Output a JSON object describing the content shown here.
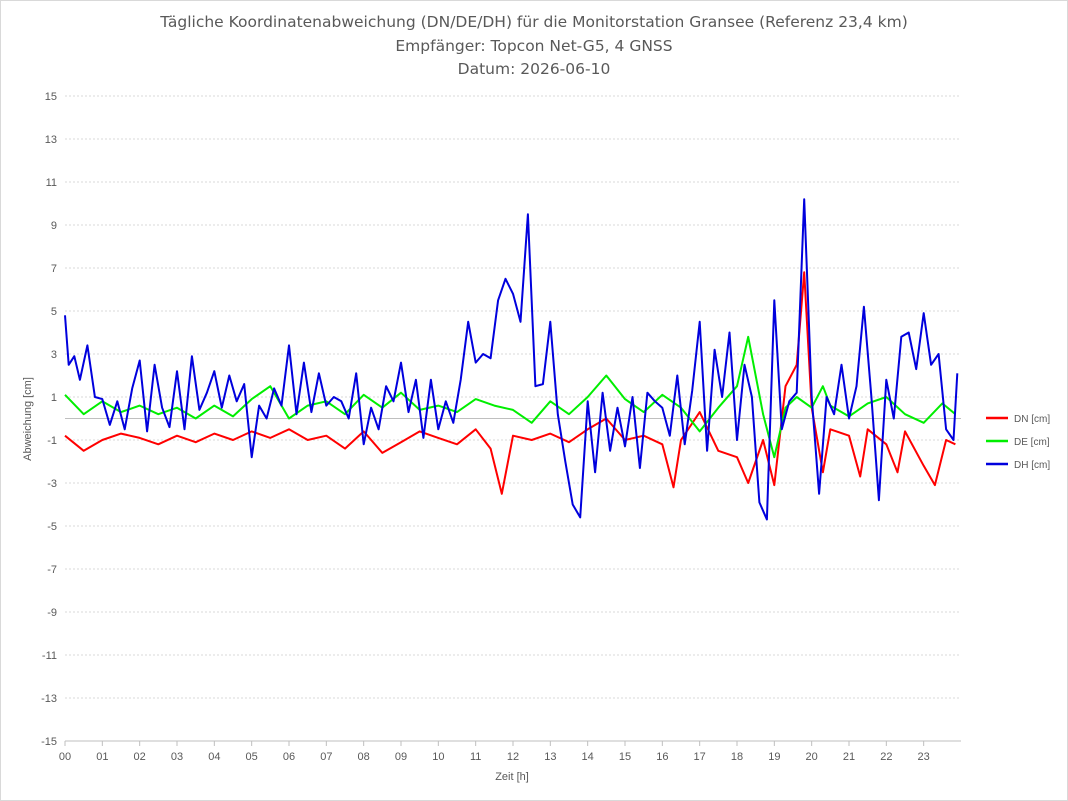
{
  "chart_data": {
    "type": "line",
    "title": "Tägliche Koordinatenabweichung (DN/DE/DH) für die Monitorstation Gransee (Referenz 23,4 km)",
    "subtitle": "Empfänger: Topcon Net-G5, 4 GNSS",
    "date_line": "Datum: 2026-06-10",
    "xlabel": "Zeit [h]",
    "ylabel": "Abweichung [cm]",
    "ylim": [
      -15,
      15
    ],
    "yticks": [
      "15",
      "13",
      "11",
      "9",
      "7",
      "5",
      "3",
      "1",
      "-1",
      "-3",
      "-5",
      "-7",
      "-9",
      "-11",
      "-13",
      "-15"
    ],
    "xlim": [
      0,
      24
    ],
    "xticks": [
      "00",
      "01",
      "02",
      "03",
      "04",
      "05",
      "06",
      "07",
      "08",
      "09",
      "10",
      "11",
      "12",
      "13",
      "14",
      "15",
      "16",
      "17",
      "18",
      "19",
      "20",
      "21",
      "22",
      "23"
    ],
    "grid": "horizontal-dotted",
    "legend_position": "right",
    "series": [
      {
        "name": "DN [cm]",
        "color": "#ff0000",
        "x": [
          0,
          0.5,
          1,
          1.5,
          2,
          2.5,
          3,
          3.5,
          4,
          4.5,
          5,
          5.5,
          6,
          6.5,
          7,
          7.5,
          8,
          8.5,
          9,
          9.5,
          10,
          10.5,
          11,
          11.4,
          11.7,
          12,
          12.5,
          13,
          13.5,
          14,
          14.5,
          15,
          15.5,
          16,
          16.3,
          16.5,
          17,
          17.5,
          18,
          18.3,
          18.7,
          19,
          19.3,
          19.6,
          19.8,
          20,
          20.3,
          20.5,
          21,
          21.3,
          21.5,
          22,
          22.3,
          22.5,
          23,
          23.3,
          23.6,
          23.85
        ],
        "values": [
          -0.8,
          -1.5,
          -1.0,
          -0.7,
          -0.9,
          -1.2,
          -0.8,
          -1.1,
          -0.7,
          -1.0,
          -0.6,
          -0.9,
          -0.5,
          -1.0,
          -0.8,
          -1.4,
          -0.6,
          -1.6,
          -1.1,
          -0.6,
          -0.9,
          -1.2,
          -0.5,
          -1.4,
          -3.5,
          -0.8,
          -1.0,
          -0.7,
          -1.1,
          -0.5,
          0.0,
          -1.0,
          -0.8,
          -1.2,
          -3.2,
          -1.0,
          0.3,
          -1.5,
          -1.8,
          -3.0,
          -1.0,
          -3.1,
          1.5,
          2.5,
          6.8,
          0.5,
          -2.5,
          -0.5,
          -0.8,
          -2.7,
          -0.5,
          -1.2,
          -2.5,
          -0.6,
          -2.2,
          -3.1,
          -1.0,
          -1.2
        ]
      },
      {
        "name": "DE [cm]",
        "color": "#00ee00",
        "x": [
          0,
          0.5,
          1,
          1.5,
          2,
          2.5,
          3,
          3.5,
          4,
          4.5,
          5,
          5.5,
          6,
          6.5,
          7,
          7.5,
          8,
          8.5,
          9,
          9.5,
          10,
          10.5,
          11,
          11.5,
          12,
          12.5,
          13,
          13.5,
          14,
          14.5,
          15,
          15.5,
          16,
          16.5,
          17,
          17.5,
          18,
          18.3,
          18.7,
          19,
          19.3,
          19.6,
          20,
          20.3,
          20.5,
          21,
          21.5,
          22,
          22.5,
          23,
          23.5,
          23.85
        ],
        "values": [
          1.1,
          0.2,
          0.8,
          0.3,
          0.6,
          0.2,
          0.5,
          0.0,
          0.6,
          0.1,
          0.9,
          1.5,
          0.0,
          0.6,
          0.8,
          0.2,
          1.1,
          0.5,
          1.2,
          0.4,
          0.6,
          0.3,
          0.9,
          0.6,
          0.4,
          -0.2,
          0.8,
          0.2,
          1.0,
          2.0,
          0.9,
          0.3,
          1.1,
          0.5,
          -0.6,
          0.5,
          1.5,
          3.8,
          0.2,
          -1.8,
          0.5,
          1.0,
          0.5,
          1.5,
          0.6,
          0.1,
          0.7,
          1.0,
          0.2,
          -0.2,
          0.7,
          0.2
        ]
      },
      {
        "name": "DH [cm]",
        "color": "#0000dd",
        "x": [
          0,
          0.1,
          0.25,
          0.4,
          0.6,
          0.8,
          1.0,
          1.2,
          1.4,
          1.6,
          1.8,
          2.0,
          2.2,
          2.4,
          2.6,
          2.8,
          3.0,
          3.2,
          3.4,
          3.6,
          3.8,
          4.0,
          4.2,
          4.4,
          4.6,
          4.8,
          5.0,
          5.2,
          5.4,
          5.6,
          5.8,
          6.0,
          6.2,
          6.4,
          6.6,
          6.8,
          7.0,
          7.2,
          7.4,
          7.6,
          7.8,
          8.0,
          8.2,
          8.4,
          8.6,
          8.8,
          9.0,
          9.2,
          9.4,
          9.6,
          9.8,
          10.0,
          10.2,
          10.4,
          10.6,
          10.8,
          11.0,
          11.2,
          11.4,
          11.6,
          11.8,
          12.0,
          12.2,
          12.4,
          12.6,
          12.8,
          13.0,
          13.2,
          13.4,
          13.6,
          13.8,
          14.0,
          14.2,
          14.4,
          14.6,
          14.8,
          15.0,
          15.2,
          15.4,
          15.6,
          15.8,
          16.0,
          16.2,
          16.4,
          16.6,
          16.8,
          17.0,
          17.2,
          17.4,
          17.6,
          17.8,
          18.0,
          18.2,
          18.4,
          18.6,
          18.8,
          19.0,
          19.2,
          19.4,
          19.6,
          19.8,
          20.0,
          20.2,
          20.4,
          20.6,
          20.8,
          21.0,
          21.2,
          21.4,
          21.6,
          21.8,
          22.0,
          22.2,
          22.4,
          22.6,
          22.8,
          23.0,
          23.2,
          23.4,
          23.6,
          23.8,
          23.9
        ],
        "values": [
          4.8,
          2.5,
          2.9,
          1.8,
          3.4,
          1.0,
          0.9,
          -0.3,
          0.8,
          -0.5,
          1.4,
          2.7,
          -0.6,
          2.5,
          0.5,
          -0.4,
          2.2,
          -0.5,
          2.9,
          0.4,
          1.2,
          2.2,
          0.5,
          2.0,
          0.8,
          1.6,
          -1.8,
          0.6,
          0.0,
          1.4,
          0.6,
          3.4,
          0.2,
          2.6,
          0.3,
          2.1,
          0.6,
          1.0,
          0.8,
          0.0,
          2.1,
          -1.2,
          0.5,
          -0.5,
          1.5,
          0.8,
          2.6,
          0.3,
          1.8,
          -0.9,
          1.8,
          -0.5,
          0.8,
          -0.2,
          1.8,
          4.5,
          2.6,
          3.0,
          2.8,
          5.5,
          6.5,
          5.8,
          4.5,
          9.5,
          1.5,
          1.6,
          4.5,
          0.2,
          -2.0,
          -4.0,
          -4.6,
          0.8,
          -2.5,
          1.2,
          -1.5,
          0.5,
          -1.3,
          1.0,
          -2.3,
          1.2,
          0.8,
          0.5,
          -0.8,
          2.0,
          -1.2,
          1.3,
          4.5,
          -1.5,
          3.2,
          1.0,
          4.0,
          -1.0,
          2.5,
          1.0,
          -3.9,
          -4.7,
          5.5,
          -0.5,
          0.8,
          1.2,
          10.2,
          1.0,
          -3.5,
          1.0,
          0.2,
          2.5,
          0.0,
          1.5,
          5.2,
          1.0,
          -3.8,
          1.8,
          0.0,
          3.8,
          4.0,
          2.3,
          4.9,
          2.5,
          3.0,
          -0.5,
          -1.0,
          2.1
        ]
      }
    ]
  }
}
